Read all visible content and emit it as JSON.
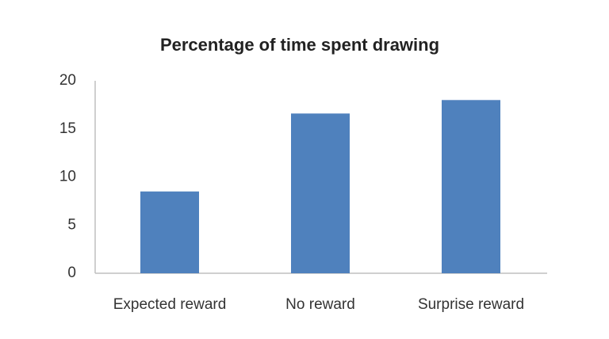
{
  "chart_data": {
    "type": "bar",
    "title": "Percentage of time spent drawing",
    "categories": [
      "Expected reward",
      "No reward",
      "Surprise reward"
    ],
    "values": [
      8.5,
      16.6,
      18.0
    ],
    "color": "#4f81bd",
    "ylim": [
      0,
      20
    ],
    "yticks": [
      0,
      5,
      10,
      15,
      20
    ],
    "grid": false
  }
}
